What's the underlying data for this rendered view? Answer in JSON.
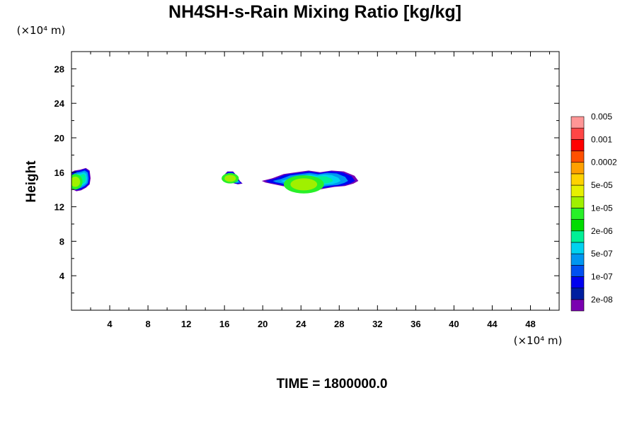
{
  "chart_data": {
    "type": "heatmap",
    "title": "NH4SH-s-Rain Mixing Ratio [kg/kg]",
    "ylabel": "Height",
    "x_unit": "(×10⁴ m)",
    "y_unit": "(×10⁴ m)",
    "footer": "TIME = 1800000.0",
    "xlim": [
      0,
      51
    ],
    "ylim": [
      0,
      30
    ],
    "x_ticks": [
      4,
      8,
      12,
      16,
      20,
      24,
      28,
      32,
      36,
      40,
      44,
      48
    ],
    "x_tick_labels": [
      "4",
      "8",
      "12",
      "16",
      "20",
      "24",
      "28",
      "32",
      "36",
      "40",
      "44",
      "48"
    ],
    "y_ticks": [
      4,
      8,
      12,
      16,
      20,
      24,
      28
    ],
    "y_tick_labels": [
      "4",
      "8",
      "12",
      "16",
      "20",
      "24",
      "28"
    ],
    "colorbar": {
      "colors": [
        "#7a00b0",
        "#001ea0",
        "#0000f0",
        "#0050f0",
        "#0096f0",
        "#00d2f0",
        "#00f096",
        "#00dc00",
        "#28f028",
        "#a0f000",
        "#e6f000",
        "#ffd200",
        "#ffa000",
        "#ff5000",
        "#ff0000",
        "#ff4646",
        "#ff9696"
      ],
      "labels": [
        "2e-08",
        "1e-07",
        "5e-07",
        "2e-06",
        "1e-05",
        "5e-05",
        "0.0002",
        "0.001",
        "0.005"
      ]
    },
    "clouds": [
      {
        "x": [
          0.0,
          0.3,
          0.9,
          1.5,
          1.9,
          2.0,
          1.9,
          1.5,
          1.0,
          0.5,
          0.0
        ],
        "y": [
          16.0,
          16.2,
          16.3,
          16.5,
          16.2,
          15.3,
          14.6,
          14.2,
          13.9,
          13.8,
          14.1
        ],
        "core_x": 0.4,
        "core_y": 14.9,
        "core_rx": 0.5,
        "core_ry": 0.6
      },
      {
        "x": [
          15.8,
          16.3,
          16.9,
          17.3,
          17.6,
          17.9,
          17.4,
          16.7,
          16.1,
          15.7
        ],
        "y": [
          15.5,
          16.1,
          16.1,
          15.6,
          15.0,
          14.7,
          14.6,
          14.8,
          15.0,
          15.2
        ],
        "core_x": 16.6,
        "core_y": 15.3,
        "core_rx": 0.6,
        "core_ry": 0.4
      },
      {
        "x": [
          19.9,
          21.0,
          22.2,
          23.5,
          24.8,
          26.0,
          27.2,
          28.5,
          29.6,
          30.0,
          29.5,
          28.6,
          27.5,
          26.4,
          25.5,
          24.6,
          23.7,
          22.5,
          21.2,
          20.3
        ],
        "y": [
          15.0,
          15.3,
          15.8,
          16.0,
          16.2,
          16.0,
          16.2,
          16.1,
          15.6,
          15.0,
          14.7,
          14.4,
          14.3,
          14.1,
          13.9,
          13.6,
          14.0,
          14.3,
          14.6,
          14.8
        ],
        "core_x": 24.3,
        "core_y": 14.6,
        "core_rx": 1.4,
        "core_ry": 0.7
      }
    ]
  }
}
